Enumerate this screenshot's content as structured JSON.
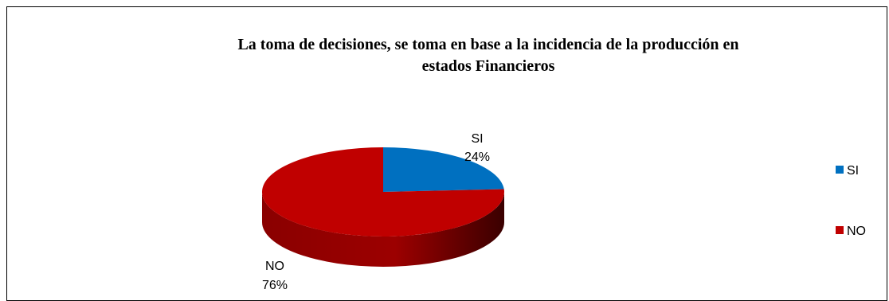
{
  "chart_data": {
    "type": "pie",
    "title": "La toma de decisiones, se toma en base a la incidencia de la producción en estados Financieros",
    "title_lines": [
      "La toma de decisiones, se toma en base a la incidencia de la producción en",
      "estados Financieros"
    ],
    "style": "3d",
    "categories": [
      "SI",
      "NO"
    ],
    "values": [
      24,
      76
    ],
    "data_labels": [
      {
        "category": "SI",
        "percent": "24%"
      },
      {
        "category": "NO",
        "percent": "76%"
      }
    ],
    "colors": {
      "SI": "#0070c0",
      "NO": "#c00000"
    },
    "legend": {
      "position": "right",
      "entries": [
        {
          "label": "SI",
          "color": "#0070c0"
        },
        {
          "label": "NO",
          "color": "#c00000"
        }
      ]
    }
  }
}
